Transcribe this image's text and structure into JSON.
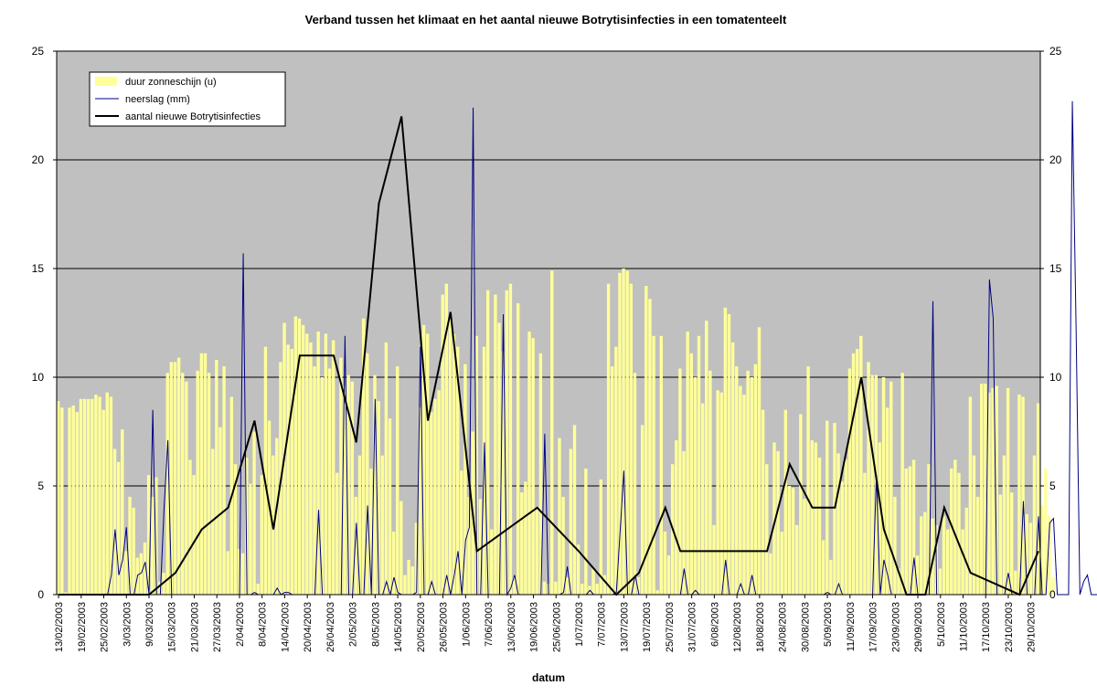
{
  "chart_data": {
    "type": "bar",
    "title": "Verband tussen het klimaat en het aantal nieuwe Botrytisinfecties in een tomatenteelt",
    "xlabel": "datum",
    "ylabel": "",
    "ylim": [
      0,
      25
    ],
    "y2lim": [
      0,
      25
    ],
    "yticks": [
      "0",
      "5",
      "10",
      "15",
      "20",
      "25"
    ],
    "y2ticks": [
      "0",
      "5",
      "10",
      "15",
      "20",
      "25"
    ],
    "grid": true,
    "legend_position": "top-left",
    "x_start": "13/02/2003",
    "x_end": "01/11/2003",
    "x_tick_labels": [
      "13/02/2003",
      "19/02/2003",
      "25/02/2003",
      "3/03/2003",
      "9/03/2003",
      "15/03/2003",
      "21/03/2003",
      "27/03/2003",
      "2/04/2003",
      "8/04/2003",
      "14/04/2003",
      "20/04/2003",
      "26/04/2003",
      "2/05/2003",
      "8/05/2003",
      "14/05/2003",
      "20/05/2003",
      "26/05/2003",
      "1/06/2003",
      "7/06/2003",
      "13/06/2003",
      "19/06/2003",
      "25/06/2003",
      "1/07/2003",
      "7/07/2003",
      "13/07/2003",
      "19/07/2003",
      "25/07/2003",
      "31/07/2003",
      "6/08/2003",
      "12/08/2003",
      "18/08/2003",
      "24/08/2003",
      "30/08/2003",
      "5/09/2003",
      "11/09/2003",
      "17/09/2003",
      "23/09/2003",
      "29/09/2003",
      "5/10/2003",
      "11/10/2003",
      "17/10/2003",
      "23/10/2003",
      "29/10/2003"
    ],
    "series": [
      {
        "name": "duur zonneschijn (u)",
        "kind": "bar",
        "color": "#ffff99",
        "values": [
          8.9,
          8.6,
          0.1,
          8.6,
          8.7,
          8.4,
          9.0,
          9.0,
          9.0,
          9.0,
          9.2,
          9.1,
          8.5,
          9.3,
          9.1,
          6.7,
          6.1,
          7.6,
          2.0,
          4.5,
          4.0,
          1.7,
          1.9,
          2.4,
          5.5,
          4.5,
          5.4,
          0.6,
          1.0,
          10.2,
          10.7,
          10.7,
          10.9,
          10.2,
          9.8,
          6.2,
          5.5,
          10.3,
          11.1,
          11.1,
          10.2,
          6.7,
          10.8,
          7.7,
          10.5,
          2.0,
          9.1,
          6.0,
          2.1,
          1.9,
          6.3,
          5.1,
          7.5,
          0.5,
          5.5,
          11.4,
          8.0,
          6.4,
          7.2,
          10.7,
          12.5,
          11.5,
          11.3,
          12.8,
          12.7,
          12.4,
          12.0,
          11.6,
          10.5,
          12.1,
          10.0,
          12.0,
          10.4,
          11.7,
          5.6,
          10.9,
          9.6,
          10.1,
          9.8,
          4.5,
          6.4,
          12.7,
          11.1,
          5.8,
          10.1,
          8.9,
          6.4,
          11.6,
          8.1,
          2.9,
          10.5,
          4.3,
          0.9,
          1.6,
          1.3,
          3.3,
          8.6,
          12.4,
          12.0,
          8.4,
          9.0,
          9.4,
          13.8,
          14.3,
          12.7,
          12.0,
          11.4,
          5.7,
          10.6,
          4.5,
          7.5,
          11.9,
          4.4,
          11.4,
          14.0,
          3.0,
          13.8,
          12.5,
          11.2,
          14.0,
          14.3,
          0.8,
          13.4,
          4.7,
          5.2,
          12.1,
          11.8,
          4.0,
          11.1,
          0.6,
          0.5,
          14.9,
          0.6,
          7.2,
          4.5,
          0.8,
          6.7,
          7.8,
          2.3,
          0.5,
          5.8,
          0.4,
          1.2,
          0.5,
          5.3,
          0.9,
          14.3,
          10.5,
          11.4,
          14.8,
          15.0,
          14.9,
          14.3,
          10.2,
          0.8,
          7.8,
          14.2,
          13.6,
          11.9,
          0.2,
          11.9,
          2.9,
          1.8,
          6.0,
          7.1,
          10.4,
          6.6,
          12.1,
          11.1,
          10.0,
          11.9,
          8.8,
          12.6,
          10.3,
          3.2,
          9.4,
          9.3,
          13.2,
          12.9,
          11.6,
          10.5,
          9.6,
          9.2,
          10.3,
          10.0,
          10.6,
          12.3,
          8.5,
          6.0,
          1.9,
          7.0,
          6.6,
          2.9,
          8.5,
          5.0,
          4.9,
          3.2,
          8.3,
          4.4,
          10.5,
          7.1,
          7.0,
          6.3,
          2.5,
          8.0,
          1.6,
          7.9,
          6.5,
          5.2,
          6.2,
          10.4,
          11.1,
          11.3,
          11.9,
          5.6,
          10.7,
          10.1,
          10.1,
          7.0,
          10.0,
          8.6,
          9.8,
          4.5,
          1.2,
          10.2,
          5.8,
          5.9,
          6.2,
          1.8,
          3.6,
          3.8,
          6.0,
          3.5,
          3.2,
          1.2,
          3.6,
          3.0,
          5.8,
          6.2,
          5.6,
          3.0,
          4.0,
          9.1,
          6.4,
          4.5,
          9.7,
          9.7,
          9.3,
          9.5,
          9.6,
          4.6,
          6.4,
          9.5,
          4.7,
          1.1,
          9.2,
          9.1,
          3.7,
          3.3,
          6.4,
          8.8,
          4.1,
          5.8,
          3.6,
          0.8
        ]
      },
      {
        "name": "neerslag (mm)",
        "kind": "line",
        "color": "#000080",
        "values": [
          0,
          0,
          0,
          0,
          0,
          0,
          0,
          0,
          0,
          0,
          0,
          0,
          0,
          0,
          0.9,
          3.0,
          0.9,
          1.6,
          3.1,
          0,
          0,
          0.9,
          1.0,
          1.5,
          0,
          8.5,
          0,
          0,
          4.0,
          7.1,
          0,
          0,
          0,
          0,
          0,
          0,
          0,
          0,
          0,
          0,
          0,
          0,
          0,
          0,
          0,
          0,
          0,
          0,
          0,
          15.7,
          0,
          0,
          0.1,
          0,
          0,
          0,
          0,
          0,
          0.3,
          0,
          0.1,
          0.1,
          0,
          0,
          0,
          0,
          0,
          0,
          0,
          3.9,
          0,
          0,
          0,
          0,
          0,
          0,
          11.9,
          0,
          0,
          3.3,
          0,
          0,
          4.1,
          0,
          9.0,
          0,
          0,
          0.6,
          0,
          0.8,
          0.1,
          0,
          0,
          0,
          0,
          0.1,
          11.4,
          0,
          0,
          0.6,
          0,
          0,
          0,
          0.9,
          0,
          0.9,
          2.0,
          0,
          2.5,
          3.1,
          22.4,
          0,
          0,
          7.0,
          0,
          0,
          0,
          0,
          12.9,
          0,
          0.3,
          0.9,
          0,
          0,
          0,
          0,
          0,
          0,
          0,
          7.4,
          0,
          0,
          0,
          0,
          0.1,
          1.3,
          0,
          0,
          0,
          0,
          0,
          0.2,
          0,
          0,
          0,
          0,
          0,
          0,
          0.1,
          2.9,
          5.7,
          0,
          0,
          0.9,
          0,
          0,
          0,
          0,
          0,
          0,
          0,
          0,
          0,
          0,
          0,
          0,
          1.2,
          0,
          0,
          0.2,
          0,
          0,
          0,
          0,
          0,
          0,
          0,
          1.6,
          0,
          0,
          0,
          0.5,
          0,
          0,
          0.9,
          0,
          0,
          0,
          0,
          0,
          0,
          0,
          0,
          0,
          0,
          0,
          0,
          0,
          0,
          0,
          0,
          0,
          0,
          0,
          0.1,
          0,
          0,
          0.5,
          0,
          0,
          0,
          0,
          0,
          0,
          0,
          0,
          0,
          5.5,
          0,
          1.6,
          0.9,
          0,
          0,
          0,
          0,
          0,
          0,
          1.7,
          0,
          0,
          0,
          0,
          13.5,
          0,
          0,
          0,
          0,
          0,
          0,
          0,
          0,
          0,
          0,
          0,
          0,
          0,
          0,
          14.5,
          12.7,
          0,
          0,
          0,
          1.0,
          0,
          0,
          0,
          4.3,
          0,
          0,
          0,
          3.6,
          0,
          0,
          3.3,
          3.5,
          0,
          0,
          0,
          0,
          22.7,
          12.2,
          0,
          0.6,
          0.9,
          0,
          0,
          0,
          0,
          0,
          0,
          0,
          0,
          0,
          0,
          0,
          0,
          0,
          0,
          0,
          9.1,
          0,
          0,
          0,
          0,
          0,
          0.1,
          5.8
        ]
      },
      {
        "name": "aantal nieuwe Botrytisinfecties",
        "kind": "line",
        "color": "#000000",
        "points": [
          [
            "13/02/2003",
            0
          ],
          [
            "9/03/2003",
            0
          ],
          [
            "16/03/2003",
            1
          ],
          [
            "23/03/2003",
            3
          ],
          [
            "30/03/2003",
            4
          ],
          [
            "6/04/2003",
            8
          ],
          [
            "11/04/2003",
            3
          ],
          [
            "18/04/2003",
            11
          ],
          [
            "27/04/2003",
            11
          ],
          [
            "3/05/2003",
            7
          ],
          [
            "9/05/2003",
            18
          ],
          [
            "15/05/2003",
            22
          ],
          [
            "22/05/2003",
            8
          ],
          [
            "28/05/2003",
            13
          ],
          [
            "4/06/2003",
            2
          ],
          [
            "12/06/2003",
            3
          ],
          [
            "20/06/2003",
            4
          ],
          [
            "1/07/2003",
            2
          ],
          [
            "11/07/2003",
            0
          ],
          [
            "17/07/2003",
            1
          ],
          [
            "24/07/2003",
            4
          ],
          [
            "28/07/2003",
            2
          ],
          [
            "20/08/2003",
            2
          ],
          [
            "26/08/2003",
            6
          ],
          [
            "1/09/2003",
            4
          ],
          [
            "7/09/2003",
            4
          ],
          [
            "14/09/2003",
            10
          ],
          [
            "20/09/2003",
            3
          ],
          [
            "26/09/2003",
            0
          ],
          [
            "1/10/2003",
            0
          ],
          [
            "6/10/2003",
            4
          ],
          [
            "13/10/2003",
            1
          ],
          [
            "26/10/2003",
            0
          ],
          [
            "31/10/2003",
            2
          ]
        ]
      }
    ]
  }
}
